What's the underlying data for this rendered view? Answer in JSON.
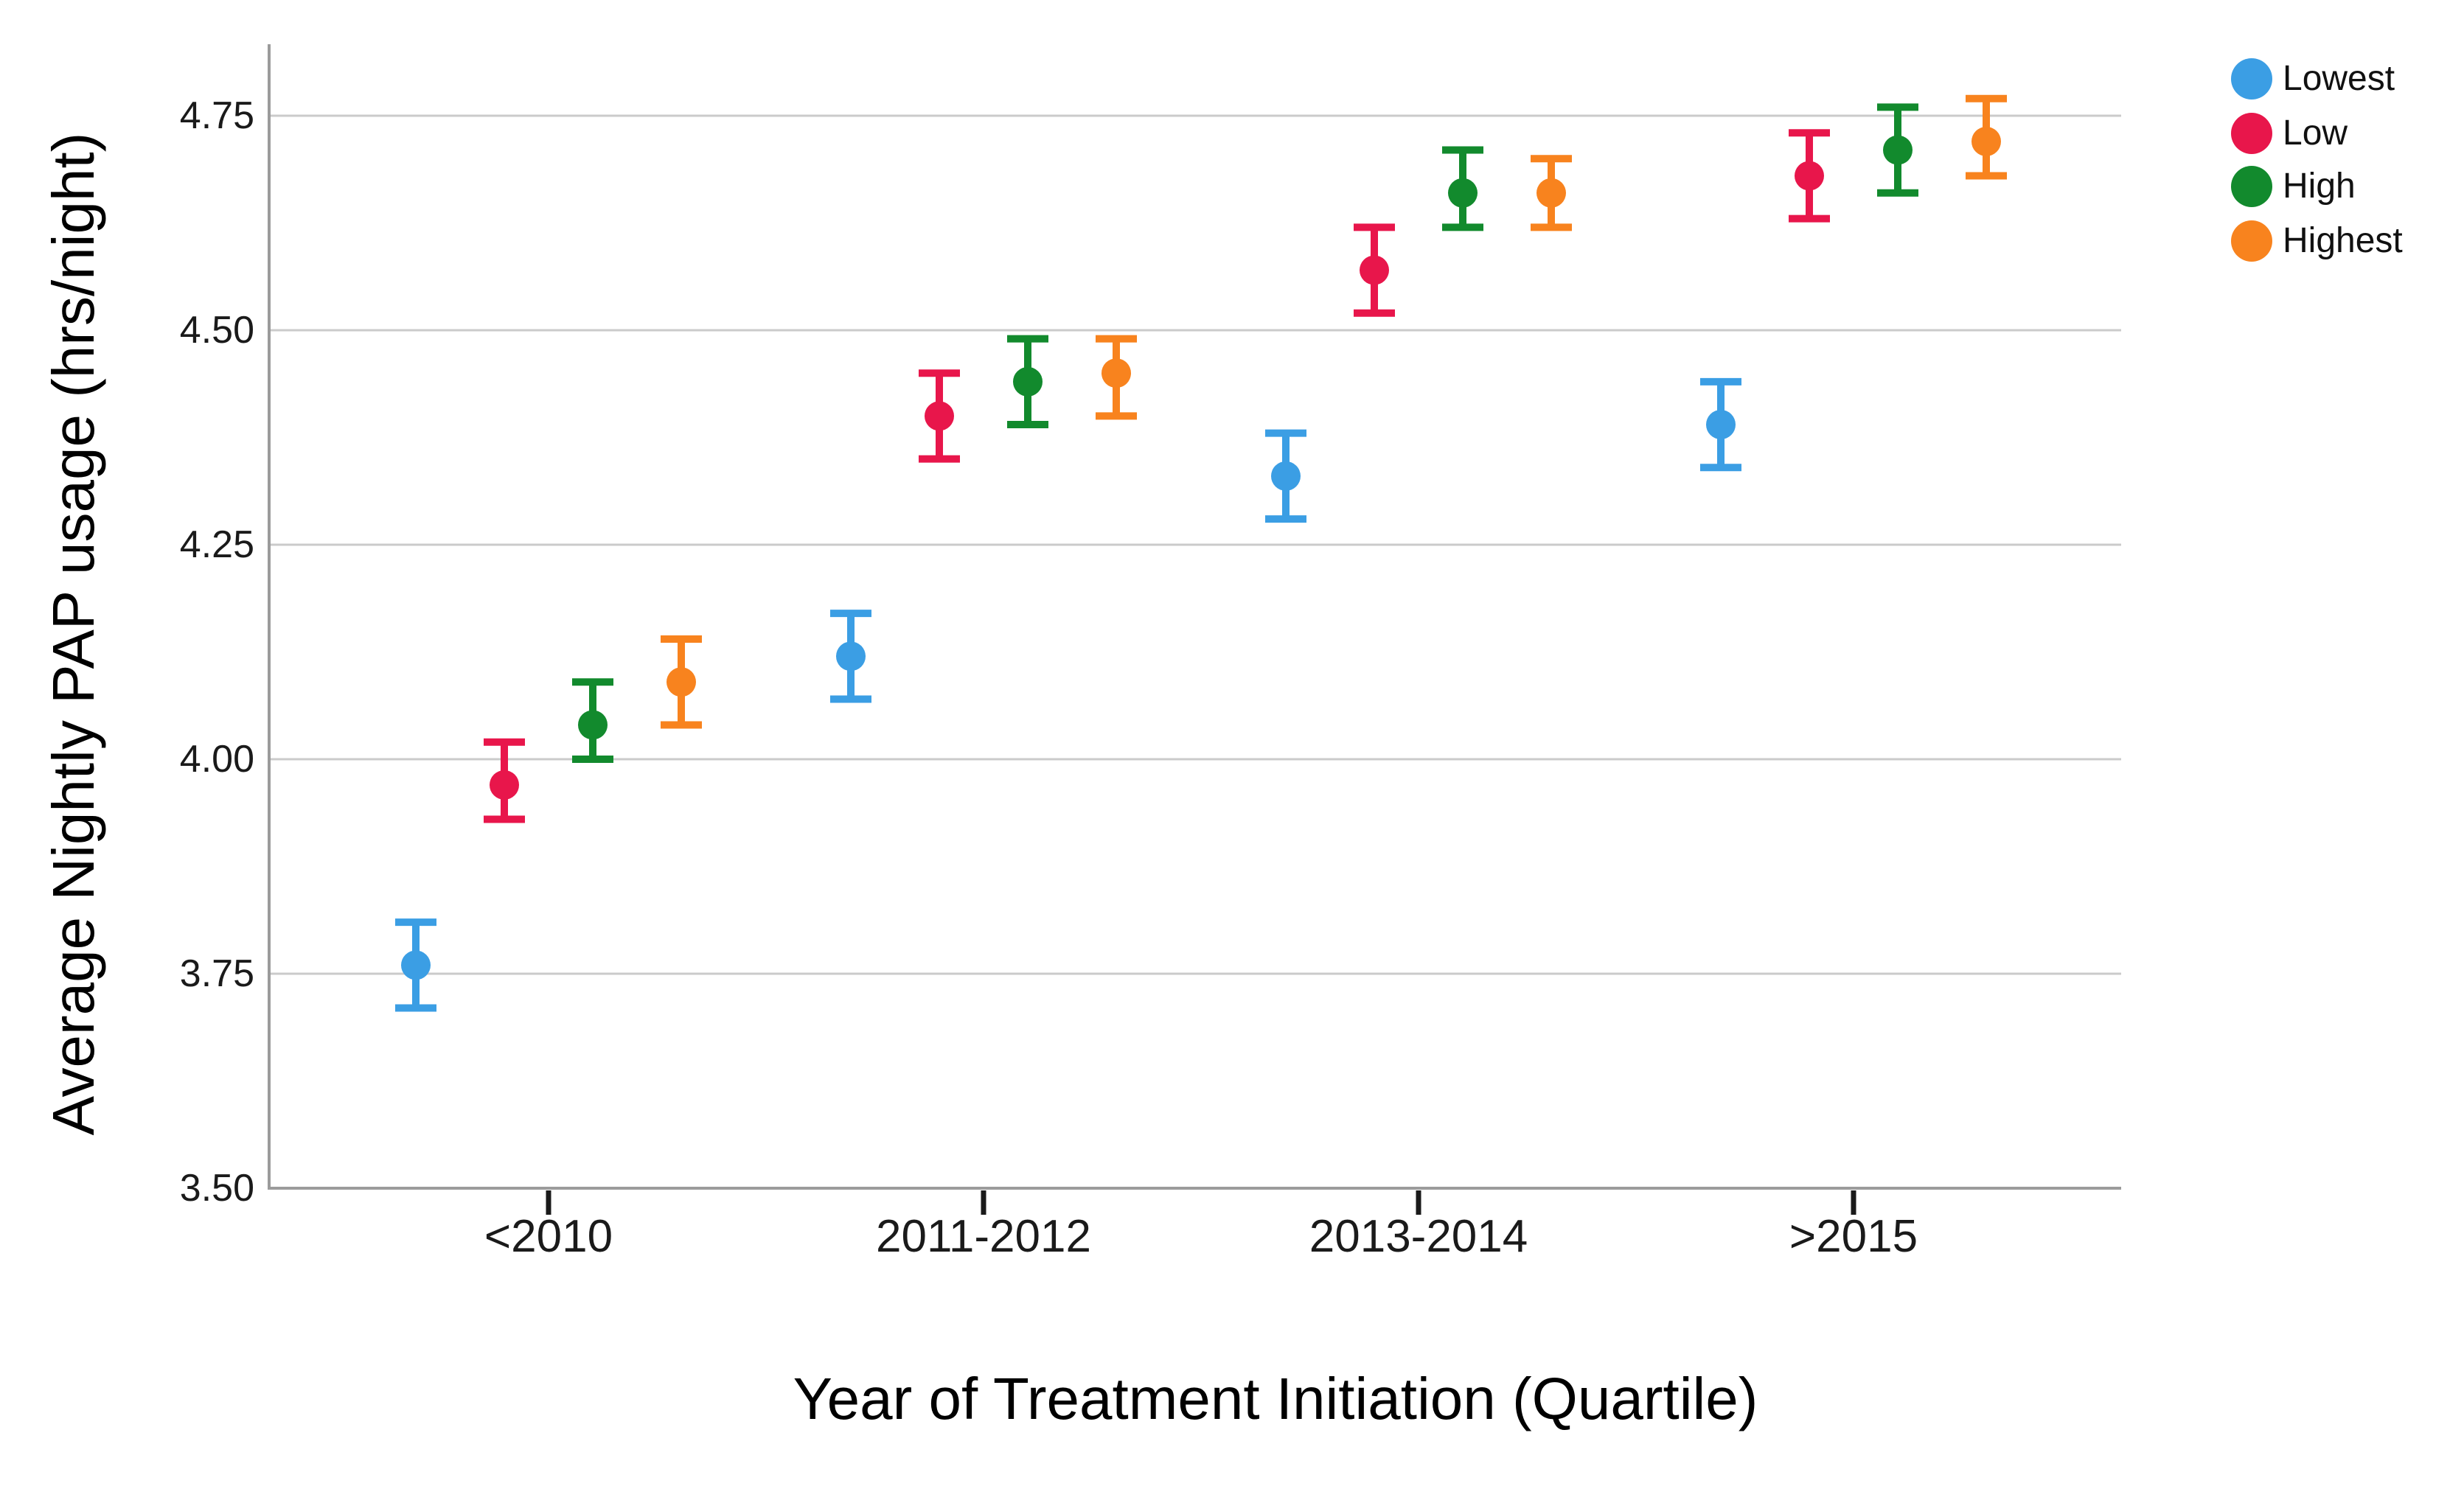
{
  "chart_data": {
    "type": "scatter",
    "subtype": "dodged-point-estimates-with-95ci-error-bars",
    "title": "",
    "xlabel": "Year of Treatment Initiation (Quartile)",
    "ylabel": "Average Nightly PAP usage (hrs/night)",
    "categories": [
      "<2010",
      "2011-2012",
      "2013-2014",
      ">2015"
    ],
    "y_ticks": [
      "4.75",
      "4.50",
      "4.25",
      "4.00",
      "3.75",
      "3.50"
    ],
    "y_tick_values": [
      4.75,
      4.5,
      4.25,
      4.0,
      3.75,
      3.5
    ],
    "ylim": [
      3.5,
      4.835
    ],
    "grid": true,
    "legend_position": "top-right",
    "colors": {
      "gridline": "#cbcbcb",
      "axis": "#9b9b9b",
      "tick_mark": "#1a1a1a",
      "text": "#111111"
    },
    "series": [
      {
        "name": "Lowest",
        "color": "#3b9ee4",
        "values": [
          3.76,
          4.12,
          4.33,
          4.39
        ],
        "ci_low": [
          3.71,
          4.07,
          4.28,
          4.34
        ],
        "ci_high": [
          3.81,
          4.17,
          4.38,
          4.44
        ]
      },
      {
        "name": "Low",
        "color": "#e8164b",
        "values": [
          3.97,
          4.4,
          4.57,
          4.68
        ],
        "ci_low": [
          3.93,
          4.35,
          4.52,
          4.63
        ],
        "ci_high": [
          4.02,
          4.45,
          4.62,
          4.73
        ]
      },
      {
        "name": "High",
        "color": "#128a2d",
        "values": [
          4.04,
          4.44,
          4.66,
          4.71
        ],
        "ci_low": [
          4.0,
          4.39,
          4.62,
          4.66
        ],
        "ci_high": [
          4.09,
          4.49,
          4.71,
          4.76
        ]
      },
      {
        "name": "Highest",
        "color": "#f8831e",
        "values": [
          4.09,
          4.45,
          4.66,
          4.72
        ],
        "ci_low": [
          4.04,
          4.4,
          4.62,
          4.68
        ],
        "ci_high": [
          4.14,
          4.49,
          4.7,
          4.77
        ]
      }
    ]
  }
}
